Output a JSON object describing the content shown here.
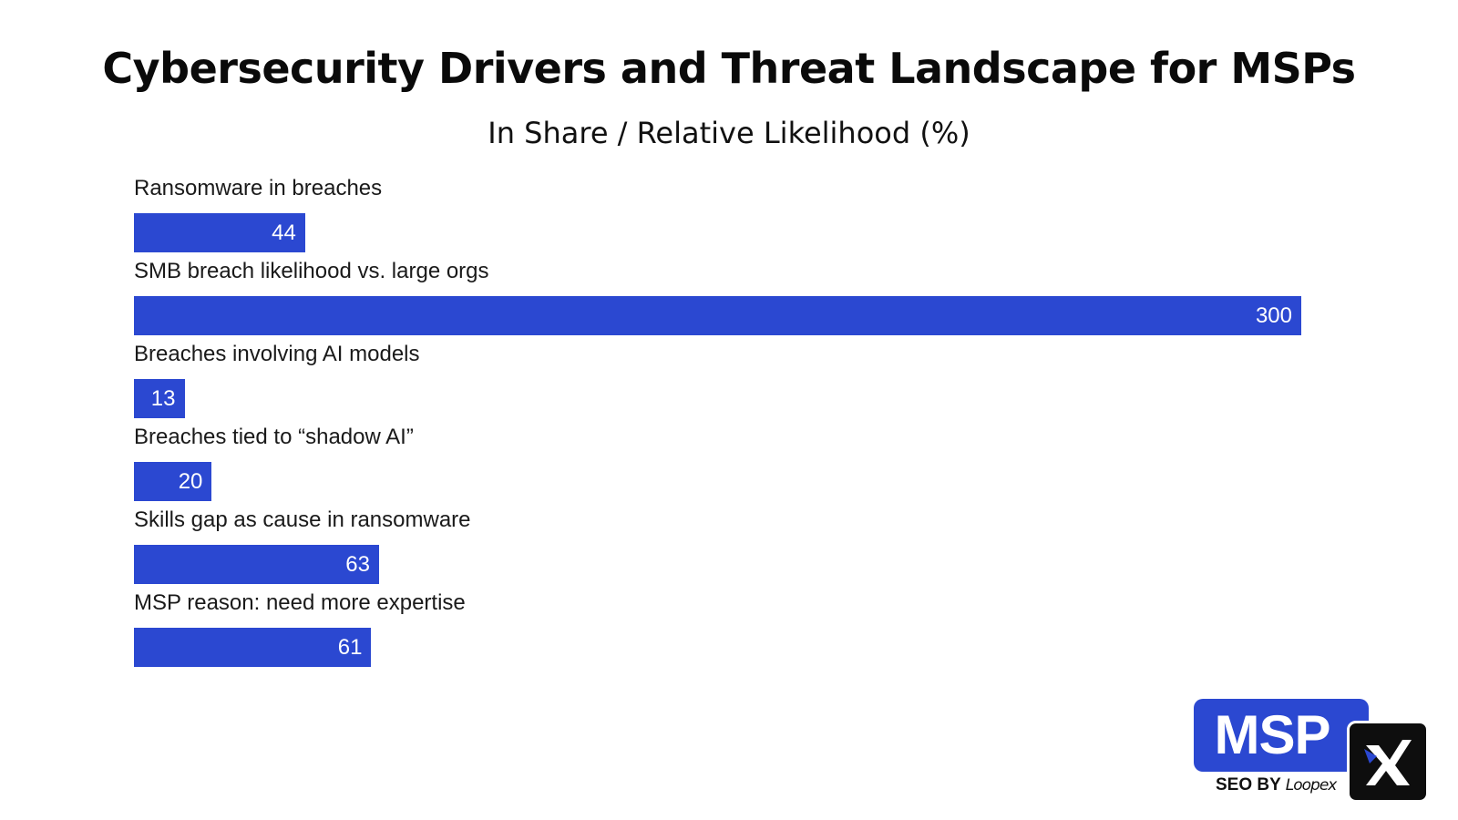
{
  "chart_data": {
    "type": "bar",
    "orientation": "horizontal",
    "title": "Cybersecurity Drivers and Threat Landscape for MSPs",
    "subtitle": "In Share / Relative Likelihood (%)",
    "categories": [
      "Ransomware in breaches",
      "SMB breach likelihood vs. large orgs",
      "Breaches involving AI models",
      "Breaches tied to “shadow AI”",
      "Skills gap as cause in ransomware",
      "MSP reason: need more expertise"
    ],
    "values": [
      44,
      300,
      13,
      20,
      63,
      61
    ],
    "xlim": [
      0,
      300
    ],
    "grid": false,
    "legend": "none",
    "bar_color": "#2b48d1",
    "value_label_color": "#ffffff"
  },
  "logo": {
    "main_text": "MSP",
    "tagline": "SEO BY",
    "brand": "Loopex",
    "primary_color": "#2b48d1",
    "secondary_color": "#0e0e0e"
  }
}
